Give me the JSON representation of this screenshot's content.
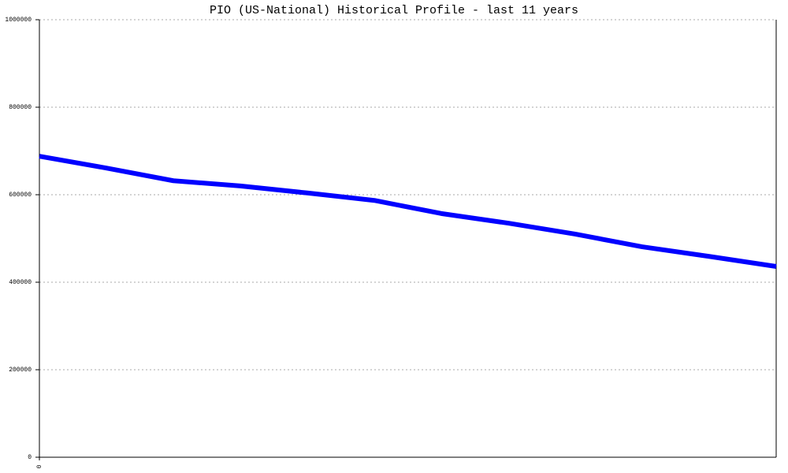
{
  "chart_data": {
    "type": "line",
    "title": "PIO (US-National) Historical Profile - last 11 years",
    "categories": [
      "0",
      null,
      null,
      null,
      null,
      null,
      null,
      null,
      null,
      null,
      null,
      null
    ],
    "series": [
      {
        "color": "#0000ff",
        "values": [
          688000,
          661000,
          632000,
          620000,
          604000,
          587000,
          557000,
          535000,
          510000,
          481000,
          459000,
          436000
        ]
      }
    ],
    "ylim": [
      0,
      1000000
    ],
    "yticks": [
      0,
      200000,
      400000,
      600000,
      800000,
      1000000
    ],
    "grid": true
  }
}
